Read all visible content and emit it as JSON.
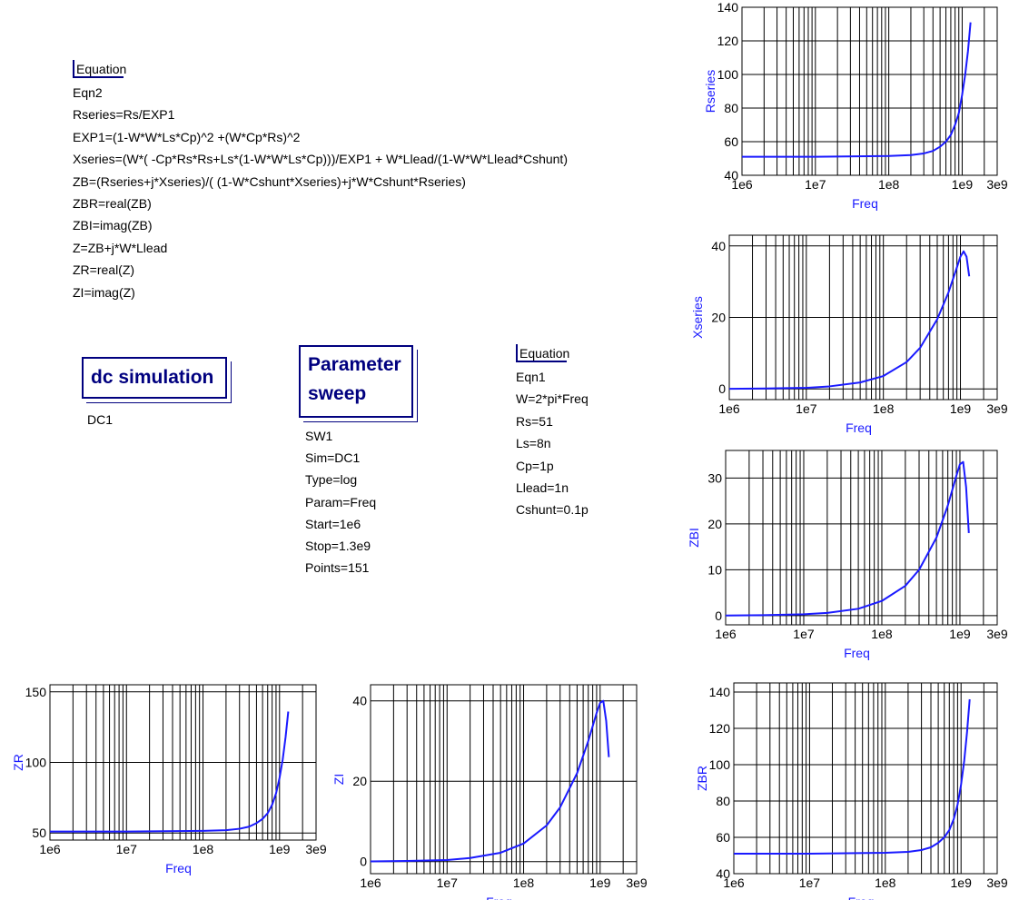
{
  "eqn2": {
    "header": "Equation",
    "lines": [
      "Eqn2",
      "Rseries=Rs/EXP1",
      "EXP1=(1-W*W*Ls*Cp)^2 +(W*Cp*Rs)^2",
      "Xseries=(W*( -Cp*Rs*Rs+Ls*(1-W*W*Ls*Cp)))/EXP1 + W*Llead/(1-W*W*Llead*Cshunt)",
      "ZB=(Rseries+j*Xseries)/( (1-W*Cshunt*Xseries)+j*W*Cshunt*Rseries)",
      "ZBR=real(ZB)",
      "ZBI=imag(ZB)",
      "Z=ZB+j*W*Llead",
      "ZR=real(Z)",
      "ZI=imag(Z)"
    ]
  },
  "eqn1": {
    "header": "Equation",
    "lines": [
      "Eqn1",
      "W=2*pi*Freq",
      "Rs=51",
      "Ls=8n",
      "Cp=1p",
      "Llead=1n",
      "Cshunt=0.1p"
    ]
  },
  "dc_block": {
    "title": "dc simulation",
    "props": [
      "DC1"
    ]
  },
  "sweep_block": {
    "title_line1": "Parameter",
    "title_line2": "sweep",
    "props": [
      "SW1",
      "Sim=DC1",
      "Type=log",
      "Param=Freq",
      "Start=1e6",
      "Stop=1.3e9",
      "Points=151"
    ]
  },
  "colors": {
    "trace": "#1a1aff",
    "frame": "#00007f",
    "grid": "#000000"
  },
  "chart_data": [
    {
      "type": "line",
      "xlabel": "Freq",
      "ylabel": "Rseries",
      "xscale": "log",
      "xlim": [
        1000000.0,
        3000000000.0
      ],
      "ylim": [
        40,
        140
      ],
      "yticks": [
        40,
        60,
        80,
        100,
        120,
        140
      ],
      "xticks": [
        "1e6",
        "1e7",
        "1e8",
        "1e9",
        "3e9"
      ],
      "grid": true,
      "series": [
        {
          "x": [
            1000000.0,
            10000000.0,
            100000000.0,
            200000000.0,
            300000000.0,
            400000000.0,
            500000000.0,
            600000000.0,
            700000000.0,
            800000000.0,
            900000000.0,
            1000000000.0,
            1100000000.0,
            1200000000.0,
            1300000000.0
          ],
          "values": [
            51,
            51,
            51.5,
            52,
            53,
            54.5,
            57,
            60,
            64,
            70,
            77,
            88,
            100,
            114,
            131
          ]
        }
      ]
    },
    {
      "type": "line",
      "xlabel": "Freq",
      "ylabel": "Xseries",
      "xscale": "log",
      "xlim": [
        1000000.0,
        3000000000.0
      ],
      "ylim": [
        -3,
        43
      ],
      "yticks": [
        0,
        20,
        40
      ],
      "xticks": [
        "1e6",
        "1e7",
        "1e8",
        "1e9",
        "3e9"
      ],
      "grid": true,
      "series": [
        {
          "x": [
            1000000.0,
            3000000.0,
            10000000.0,
            20000000.0,
            50000000.0,
            100000000.0,
            200000000.0,
            300000000.0,
            500000000.0,
            700000000.0,
            900000000.0,
            1000000000.0,
            1100000000.0,
            1200000000.0,
            1300000000.0
          ],
          "values": [
            0.03,
            0.1,
            0.3,
            0.7,
            1.8,
            3.6,
            7.5,
            11.5,
            19.5,
            27,
            34,
            37,
            38.5,
            37,
            31.5
          ]
        }
      ]
    },
    {
      "type": "line",
      "xlabel": "Freq",
      "ylabel": "ZBI",
      "xscale": "log",
      "xlim": [
        1000000.0,
        3000000000.0
      ],
      "ylim": [
        -2,
        36
      ],
      "yticks": [
        0,
        10,
        20,
        30
      ],
      "xticks": [
        "1e6",
        "1e7",
        "1e8",
        "1e9",
        "3e9"
      ],
      "grid": true,
      "series": [
        {
          "x": [
            1000000.0,
            3000000.0,
            10000000.0,
            20000000.0,
            50000000.0,
            100000000.0,
            200000000.0,
            300000000.0,
            500000000.0,
            700000000.0,
            900000000.0,
            1000000000.0,
            1100000000.0,
            1200000000.0,
            1300000000.0
          ],
          "values": [
            0.03,
            0.1,
            0.3,
            0.6,
            1.5,
            3.2,
            6.5,
            10,
            17,
            24,
            30.5,
            33,
            33.5,
            28,
            18
          ]
        }
      ]
    },
    {
      "type": "line",
      "xlabel": "Freq",
      "ylabel": "ZBR",
      "xscale": "log",
      "xlim": [
        1000000.0,
        3000000000.0
      ],
      "ylim": [
        40,
        145
      ],
      "yticks": [
        40,
        60,
        80,
        100,
        120,
        140
      ],
      "xticks": [
        "1e6",
        "1e7",
        "1e8",
        "1e9",
        "3e9"
      ],
      "grid": true,
      "series": [
        {
          "x": [
            1000000.0,
            10000000.0,
            100000000.0,
            200000000.0,
            300000000.0,
            400000000.0,
            500000000.0,
            600000000.0,
            700000000.0,
            800000000.0,
            900000000.0,
            1000000000.0,
            1100000000.0,
            1200000000.0,
            1300000000.0
          ],
          "values": [
            51,
            51,
            51.5,
            52,
            53,
            54.5,
            57,
            60,
            64,
            70,
            78,
            89,
            102,
            118,
            136
          ]
        }
      ]
    },
    {
      "type": "line",
      "xlabel": "Freq",
      "ylabel": "ZR",
      "xscale": "log",
      "xlim": [
        1000000.0,
        3000000000.0
      ],
      "ylim": [
        45,
        155
      ],
      "yticks": [
        50,
        100,
        150
      ],
      "xticks": [
        "1e6",
        "1e7",
        "1e8",
        "1e9",
        "3e9"
      ],
      "grid": true,
      "series": [
        {
          "x": [
            1000000.0,
            10000000.0,
            100000000.0,
            200000000.0,
            300000000.0,
            400000000.0,
            500000000.0,
            600000000.0,
            700000000.0,
            800000000.0,
            900000000.0,
            1000000000.0,
            1100000000.0,
            1200000000.0,
            1300000000.0
          ],
          "values": [
            51,
            51,
            51.5,
            52,
            53,
            54.5,
            57,
            60,
            64,
            70,
            78,
            89,
            102,
            118,
            136
          ]
        }
      ]
    },
    {
      "type": "line",
      "xlabel": "Freq",
      "ylabel": "ZI",
      "xscale": "log",
      "xlim": [
        1000000.0,
        3000000000.0
      ],
      "ylim": [
        -3,
        44
      ],
      "yticks": [
        0,
        20,
        40
      ],
      "xticks": [
        "1e6",
        "1e7",
        "1e8",
        "1e9",
        "3e9"
      ],
      "grid": true,
      "series": [
        {
          "x": [
            1000000.0,
            3000000.0,
            10000000.0,
            20000000.0,
            50000000.0,
            100000000.0,
            200000000.0,
            300000000.0,
            500000000.0,
            700000000.0,
            900000000.0,
            1000000000.0,
            1100000000.0,
            1200000000.0,
            1300000000.0
          ],
          "values": [
            0.05,
            0.15,
            0.4,
            0.9,
            2.2,
            4.5,
            9,
            13.5,
            22,
            30,
            37,
            39.5,
            40,
            35,
            26
          ]
        }
      ]
    }
  ]
}
